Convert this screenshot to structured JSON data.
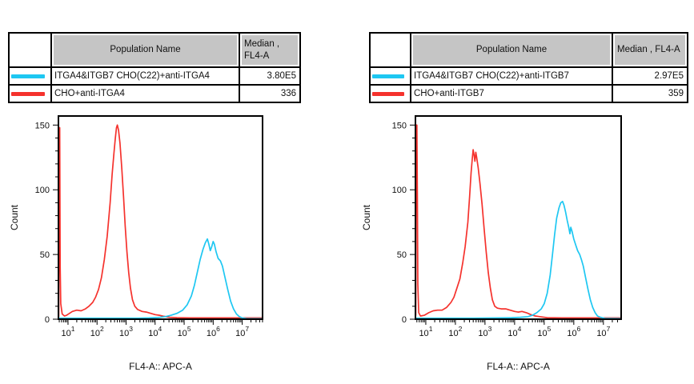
{
  "colors": {
    "red": "#f5322d",
    "cyan": "#1ec7f2",
    "header_gray": "#c5c5c5",
    "border": "#000000",
    "text": "#111111"
  },
  "panels": [
    {
      "side": "left",
      "table": {
        "population_header": "Population Name",
        "median_header_lines": [
          "Median ,",
          "FL4-A"
        ],
        "rows": [
          {
            "swatch_color": "cyan",
            "name": "ITGA4&ITGB7 CHO(C22)+anti-ITGA4",
            "median": "3.80E5"
          },
          {
            "swatch_color": "red",
            "name": "CHO+anti-ITGA4",
            "median": "336"
          }
        ]
      }
    },
    {
      "side": "right",
      "table": {
        "population_header": "Population Name",
        "median_header_lines": [
          "Median , FL4-A"
        ],
        "rows": [
          {
            "swatch_color": "cyan",
            "name": "ITGA4&ITGB7 CHO(C22)+anti-ITGB7",
            "median": "2.97E5"
          },
          {
            "swatch_color": "red",
            "name": "CHO+anti-ITGB7",
            "median": "359"
          }
        ]
      }
    }
  ],
  "chart_data": [
    {
      "type": "line",
      "title": "",
      "xlabel": "FL4-A:: APC-A",
      "ylabel": "Count",
      "x_scale": "log10",
      "x_tick_exponents": [
        1,
        2,
        3,
        4,
        5,
        6,
        7
      ],
      "xlim_log10": [
        0.67,
        7.7
      ],
      "ylim": [
        0,
        157
      ],
      "y_major_ticks": [
        0,
        50,
        100,
        150
      ],
      "y_minor_step": 10,
      "grid": false,
      "legend": "none",
      "series": [
        {
          "name": "CHO+anti-ITGA4",
          "color": "red",
          "median": "336",
          "points_log10x_count": [
            [
              0.68,
              2
            ],
            [
              0.7,
              148
            ],
            [
              0.715,
              148
            ],
            [
              0.73,
              40
            ],
            [
              0.75,
              12
            ],
            [
              0.8,
              4
            ],
            [
              0.88,
              2.5
            ],
            [
              0.95,
              3
            ],
            [
              1.05,
              4.5
            ],
            [
              1.15,
              6
            ],
            [
              1.3,
              7
            ],
            [
              1.45,
              6.5
            ],
            [
              1.6,
              8
            ],
            [
              1.72,
              10
            ],
            [
              1.85,
              13
            ],
            [
              1.95,
              17
            ],
            [
              2.05,
              23
            ],
            [
              2.15,
              32
            ],
            [
              2.25,
              46
            ],
            [
              2.35,
              64
            ],
            [
              2.45,
              90
            ],
            [
              2.52,
              112
            ],
            [
              2.58,
              128
            ],
            [
              2.63,
              140
            ],
            [
              2.67,
              148
            ],
            [
              2.7,
              150
            ],
            [
              2.74,
              146
            ],
            [
              2.79,
              136
            ],
            [
              2.85,
              117
            ],
            [
              2.91,
              95
            ],
            [
              2.97,
              72
            ],
            [
              3.03,
              52
            ],
            [
              3.09,
              36
            ],
            [
              3.15,
              24
            ],
            [
              3.22,
              15
            ],
            [
              3.3,
              10
            ],
            [
              3.4,
              7.5
            ],
            [
              3.55,
              6
            ],
            [
              3.7,
              5.5
            ],
            [
              3.85,
              4.5
            ],
            [
              4.0,
              3.5
            ],
            [
              4.15,
              3
            ],
            [
              4.3,
              2.2
            ],
            [
              4.5,
              1.5
            ],
            [
              4.75,
              1.2
            ],
            [
              5.2,
              1
            ],
            [
              6.0,
              1
            ],
            [
              7.0,
              1
            ],
            [
              7.7,
              1
            ]
          ]
        },
        {
          "name": "ITGA4&ITGB7 CHO(C22)+anti-ITGA4",
          "color": "cyan",
          "median": "3.80E5",
          "points_log10x_count": [
            [
              0.68,
              0.8
            ],
            [
              1.5,
              0.8
            ],
            [
              2.5,
              0.8
            ],
            [
              3.4,
              0.8
            ],
            [
              3.8,
              1
            ],
            [
              4.1,
              1.3
            ],
            [
              4.35,
              2
            ],
            [
              4.55,
              3
            ],
            [
              4.75,
              4.5
            ],
            [
              4.95,
              7
            ],
            [
              5.1,
              11
            ],
            [
              5.25,
              18
            ],
            [
              5.35,
              26
            ],
            [
              5.45,
              36
            ],
            [
              5.55,
              46
            ],
            [
              5.65,
              54
            ],
            [
              5.73,
              59
            ],
            [
              5.8,
              62
            ],
            [
              5.85,
              58
            ],
            [
              5.9,
              53
            ],
            [
              5.95,
              56
            ],
            [
              6.0,
              60
            ],
            [
              6.04,
              58
            ],
            [
              6.1,
              52
            ],
            [
              6.17,
              47
            ],
            [
              6.25,
              45
            ],
            [
              6.32,
              41
            ],
            [
              6.4,
              33
            ],
            [
              6.5,
              23
            ],
            [
              6.6,
              14
            ],
            [
              6.7,
              8
            ],
            [
              6.8,
              4
            ],
            [
              6.9,
              2
            ],
            [
              7.0,
              1
            ],
            [
              7.15,
              0.5
            ],
            [
              7.7,
              0.4
            ]
          ]
        }
      ]
    },
    {
      "type": "line",
      "title": "",
      "xlabel": "FL4-A:: APC-A",
      "ylabel": "Count",
      "x_scale": "log10",
      "x_tick_exponents": [
        1,
        2,
        3,
        4,
        5,
        6,
        7
      ],
      "xlim_log10": [
        0.65,
        7.6
      ],
      "ylim": [
        0,
        157
      ],
      "y_major_ticks": [
        0,
        50,
        100,
        150
      ],
      "y_minor_step": 10,
      "grid": false,
      "legend": "none",
      "series": [
        {
          "name": "CHO+anti-ITGB7",
          "color": "red",
          "median": "359",
          "points_log10x_count": [
            [
              0.66,
              3
            ],
            [
              0.68,
              150
            ],
            [
              0.7,
              150
            ],
            [
              0.715,
              97
            ],
            [
              0.73,
              27
            ],
            [
              0.76,
              5
            ],
            [
              0.82,
              2.5
            ],
            [
              0.95,
              3
            ],
            [
              1.1,
              5
            ],
            [
              1.25,
              6.5
            ],
            [
              1.4,
              7
            ],
            [
              1.55,
              7
            ],
            [
              1.7,
              9
            ],
            [
              1.85,
              13
            ],
            [
              1.95,
              17
            ],
            [
              2.05,
              24
            ],
            [
              2.15,
              31
            ],
            [
              2.25,
              44
            ],
            [
              2.33,
              56
            ],
            [
              2.42,
              75
            ],
            [
              2.48,
              95
            ],
            [
              2.53,
              113
            ],
            [
              2.57,
              124
            ],
            [
              2.6,
              131
            ],
            [
              2.63,
              127
            ],
            [
              2.66,
              122
            ],
            [
              2.69,
              129
            ],
            [
              2.72,
              125
            ],
            [
              2.77,
              117
            ],
            [
              2.83,
              105
            ],
            [
              2.9,
              89
            ],
            [
              2.97,
              70
            ],
            [
              3.04,
              52
            ],
            [
              3.11,
              36
            ],
            [
              3.18,
              24
            ],
            [
              3.25,
              15
            ],
            [
              3.33,
              10
            ],
            [
              3.42,
              8.5
            ],
            [
              3.55,
              8
            ],
            [
              3.7,
              8
            ],
            [
              3.85,
              7
            ],
            [
              4.0,
              6
            ],
            [
              4.12,
              5.5
            ],
            [
              4.25,
              6
            ],
            [
              4.4,
              5
            ],
            [
              4.55,
              3.5
            ],
            [
              4.7,
              2.5
            ],
            [
              4.85,
              2
            ],
            [
              5.1,
              1.2
            ],
            [
              5.6,
              1
            ],
            [
              6.5,
              1
            ],
            [
              7.6,
              1
            ]
          ]
        },
        {
          "name": "ITGA4&ITGB7 CHO(C22)+anti-ITGB7",
          "color": "cyan",
          "median": "2.97E5",
          "points_log10x_count": [
            [
              0.66,
              0.8
            ],
            [
              1.5,
              0.8
            ],
            [
              2.6,
              0.8
            ],
            [
              3.5,
              1
            ],
            [
              3.9,
              1.2
            ],
            [
              4.2,
              1.5
            ],
            [
              4.45,
              2
            ],
            [
              4.6,
              3
            ],
            [
              4.75,
              5
            ],
            [
              4.9,
              8
            ],
            [
              5.0,
              12
            ],
            [
              5.1,
              20
            ],
            [
              5.2,
              34
            ],
            [
              5.28,
              50
            ],
            [
              5.35,
              65
            ],
            [
              5.42,
              78
            ],
            [
              5.5,
              86
            ],
            [
              5.56,
              90
            ],
            [
              5.62,
              91
            ],
            [
              5.67,
              88
            ],
            [
              5.72,
              83
            ],
            [
              5.78,
              76
            ],
            [
              5.83,
              71
            ],
            [
              5.87,
              66
            ],
            [
              5.9,
              71
            ],
            [
              5.94,
              68
            ],
            [
              6.0,
              62
            ],
            [
              6.07,
              57
            ],
            [
              6.13,
              53
            ],
            [
              6.2,
              50
            ],
            [
              6.26,
              46
            ],
            [
              6.32,
              41
            ],
            [
              6.4,
              32
            ],
            [
              6.48,
              23
            ],
            [
              6.56,
              15
            ],
            [
              6.64,
              9
            ],
            [
              6.72,
              5
            ],
            [
              6.8,
              2.5
            ],
            [
              6.9,
              1.5
            ],
            [
              7.05,
              0.6
            ],
            [
              7.6,
              0.5
            ]
          ]
        }
      ]
    }
  ]
}
